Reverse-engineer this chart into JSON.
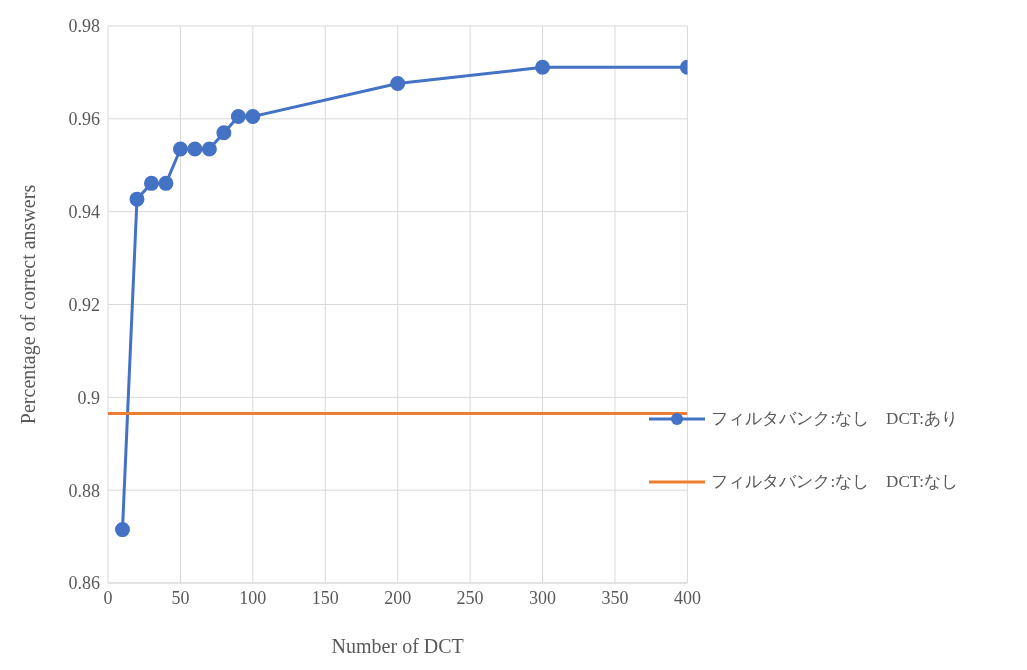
{
  "chart_data": {
    "type": "line",
    "xlabel": "Number of DCT",
    "ylabel": "Percentage of correct answers",
    "series": [
      {
        "name": "フィルタバンク:なし　DCT:あり",
        "color": "#4472c4",
        "x": [
          10,
          20,
          30,
          40,
          50,
          60,
          70,
          80,
          90,
          100,
          200,
          300,
          400
        ],
        "values": [
          0.8715,
          0.9427,
          0.9461,
          0.9461,
          0.9535,
          0.9535,
          0.9535,
          0.957,
          0.9605,
          0.9605,
          0.9676,
          0.9711,
          0.9711
        ],
        "marker": "circle"
      },
      {
        "name": "フィルタバンク:なし　DCT:なし",
        "color": "#ed7d31",
        "x": [
          0,
          400
        ],
        "values": [
          0.8965,
          0.8965
        ],
        "marker": "none"
      }
    ],
    "xlim": [
      0,
      400
    ],
    "xticks": [
      0,
      50,
      100,
      150,
      200,
      250,
      300,
      350,
      400
    ],
    "ylim": [
      0.86,
      0.98
    ],
    "yticks": [
      0.86,
      0.88,
      0.9,
      0.92,
      0.94,
      0.96,
      0.98
    ],
    "grid": true,
    "legend": "bottom right",
    "line_style": "solid"
  }
}
